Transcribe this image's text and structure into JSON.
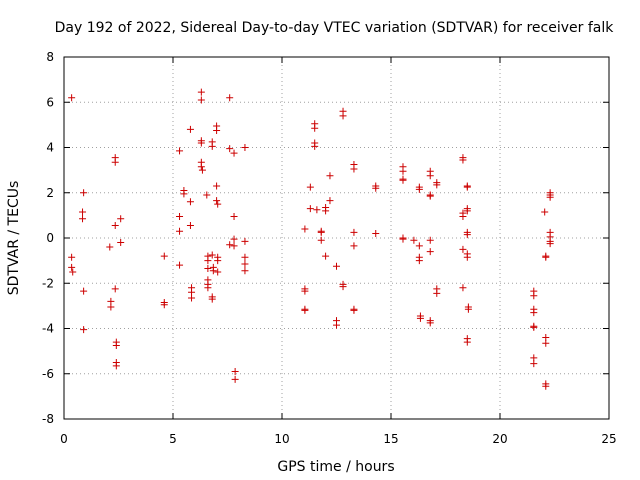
{
  "chart_data": {
    "type": "scatter",
    "title": "Day 192 of 2022, Sidereal Day-to-day VTEC variation (SDTVAR) for receiver falk",
    "xlabel": "GPS time / hours",
    "ylabel": "SDTVAR / TECUs",
    "xlim": [
      0,
      25
    ],
    "ylim": [
      -8,
      8
    ],
    "xticks": [
      0,
      5,
      10,
      15,
      20,
      25
    ],
    "yticks": [
      -8,
      -6,
      -4,
      -2,
      0,
      2,
      4,
      6,
      8
    ],
    "grid": true,
    "marker": "+",
    "color": "#cc0000",
    "points": [
      [
        0.35,
        6.2
      ],
      [
        0.35,
        -0.85
      ],
      [
        0.35,
        -1.3
      ],
      [
        0.4,
        -1.5
      ],
      [
        0.9,
        2.0
      ],
      [
        0.85,
        1.15
      ],
      [
        0.85,
        0.85
      ],
      [
        0.9,
        -2.35
      ],
      [
        0.9,
        -4.05
      ],
      [
        2.1,
        -0.4
      ],
      [
        2.15,
        -2.8
      ],
      [
        2.15,
        -3.05
      ],
      [
        2.35,
        3.55
      ],
      [
        2.35,
        3.35
      ],
      [
        2.35,
        0.55
      ],
      [
        2.35,
        -2.25
      ],
      [
        2.4,
        -4.6
      ],
      [
        2.4,
        -4.75
      ],
      [
        2.4,
        -5.5
      ],
      [
        2.4,
        -5.65
      ],
      [
        2.6,
        0.85
      ],
      [
        2.6,
        -0.2
      ],
      [
        4.6,
        -0.8
      ],
      [
        4.6,
        -2.85
      ],
      [
        4.6,
        -2.95
      ],
      [
        5.3,
        3.85
      ],
      [
        5.3,
        0.95
      ],
      [
        5.3,
        0.3
      ],
      [
        5.3,
        -1.2
      ],
      [
        5.5,
        2.1
      ],
      [
        5.5,
        1.95
      ],
      [
        5.8,
        4.8
      ],
      [
        5.8,
        1.6
      ],
      [
        5.8,
        0.55
      ],
      [
        5.85,
        -2.2
      ],
      [
        5.85,
        -2.4
      ],
      [
        5.85,
        -2.65
      ],
      [
        6.3,
        6.45
      ],
      [
        6.3,
        6.1
      ],
      [
        6.3,
        4.3
      ],
      [
        6.3,
        4.2
      ],
      [
        6.3,
        3.35
      ],
      [
        6.3,
        3.15
      ],
      [
        6.35,
        3.0
      ],
      [
        6.55,
        1.9
      ],
      [
        6.6,
        -0.8
      ],
      [
        6.6,
        -1.0
      ],
      [
        6.6,
        -1.35
      ],
      [
        6.6,
        -1.85
      ],
      [
        6.6,
        -2.05
      ],
      [
        6.6,
        -2.2
      ],
      [
        6.8,
        4.25
      ],
      [
        6.8,
        4.05
      ],
      [
        6.8,
        -0.75
      ],
      [
        6.85,
        -1.3
      ],
      [
        6.85,
        -1.45
      ],
      [
        6.8,
        -2.6
      ],
      [
        6.8,
        -2.7
      ],
      [
        7.0,
        4.95
      ],
      [
        7.0,
        4.75
      ],
      [
        7.0,
        2.3
      ],
      [
        7.0,
        1.65
      ],
      [
        7.05,
        1.5
      ],
      [
        7.05,
        -0.85
      ],
      [
        7.05,
        -1.0
      ],
      [
        7.05,
        -1.5
      ],
      [
        7.6,
        6.2
      ],
      [
        7.6,
        3.95
      ],
      [
        7.6,
        -0.3
      ],
      [
        7.8,
        3.75
      ],
      [
        7.8,
        0.95
      ],
      [
        7.8,
        -0.05
      ],
      [
        7.8,
        -0.35
      ],
      [
        7.85,
        -5.9
      ],
      [
        7.85,
        -6.25
      ],
      [
        8.3,
        4.0
      ],
      [
        8.3,
        -0.15
      ],
      [
        8.3,
        -0.85
      ],
      [
        8.3,
        -1.15
      ],
      [
        8.3,
        -1.45
      ],
      [
        11.05,
        0.4
      ],
      [
        11.05,
        -2.25
      ],
      [
        11.05,
        -2.35
      ],
      [
        11.05,
        -3.15
      ],
      [
        11.05,
        -3.2
      ],
      [
        11.3,
        2.25
      ],
      [
        11.3,
        1.3
      ],
      [
        11.5,
        5.05
      ],
      [
        11.5,
        4.85
      ],
      [
        11.5,
        4.2
      ],
      [
        11.5,
        4.05
      ],
      [
        11.6,
        1.25
      ],
      [
        11.8,
        0.3
      ],
      [
        11.8,
        0.25
      ],
      [
        11.8,
        -0.1
      ],
      [
        12.0,
        1.35
      ],
      [
        12.0,
        1.2
      ],
      [
        12.0,
        -0.8
      ],
      [
        12.2,
        2.75
      ],
      [
        12.2,
        1.65
      ],
      [
        12.5,
        -1.25
      ],
      [
        12.5,
        -3.65
      ],
      [
        12.5,
        -3.85
      ],
      [
        12.8,
        5.6
      ],
      [
        12.8,
        5.4
      ],
      [
        12.8,
        -2.05
      ],
      [
        12.8,
        -2.15
      ],
      [
        13.3,
        3.25
      ],
      [
        13.3,
        3.05
      ],
      [
        13.3,
        0.25
      ],
      [
        13.3,
        -0.35
      ],
      [
        13.3,
        -3.15
      ],
      [
        13.3,
        -3.2
      ],
      [
        14.3,
        2.3
      ],
      [
        14.3,
        2.2
      ],
      [
        14.3,
        0.2
      ],
      [
        15.55,
        3.15
      ],
      [
        15.55,
        2.95
      ],
      [
        15.55,
        2.6
      ],
      [
        15.55,
        2.55
      ],
      [
        15.55,
        0.0
      ],
      [
        15.55,
        -0.05
      ],
      [
        16.05,
        -0.1
      ],
      [
        16.3,
        2.25
      ],
      [
        16.3,
        2.15
      ],
      [
        16.3,
        -0.35
      ],
      [
        16.3,
        -0.85
      ],
      [
        16.3,
        -1.0
      ],
      [
        16.35,
        -3.45
      ],
      [
        16.35,
        -3.55
      ],
      [
        16.8,
        2.95
      ],
      [
        16.8,
        2.75
      ],
      [
        16.8,
        1.9
      ],
      [
        16.8,
        1.85
      ],
      [
        16.8,
        -0.1
      ],
      [
        16.8,
        -0.6
      ],
      [
        16.8,
        -3.65
      ],
      [
        16.8,
        -3.75
      ],
      [
        17.1,
        2.45
      ],
      [
        17.1,
        2.35
      ],
      [
        17.1,
        -2.25
      ],
      [
        17.1,
        -2.45
      ],
      [
        18.3,
        3.55
      ],
      [
        18.3,
        3.45
      ],
      [
        18.3,
        1.1
      ],
      [
        18.3,
        0.95
      ],
      [
        18.3,
        -0.5
      ],
      [
        18.3,
        -2.2
      ],
      [
        18.5,
        2.3
      ],
      [
        18.5,
        2.25
      ],
      [
        18.5,
        1.3
      ],
      [
        18.5,
        1.2
      ],
      [
        18.5,
        0.25
      ],
      [
        18.5,
        0.15
      ],
      [
        18.5,
        -0.7
      ],
      [
        18.5,
        -0.85
      ],
      [
        18.55,
        -3.05
      ],
      [
        18.55,
        -3.15
      ],
      [
        18.5,
        -4.45
      ],
      [
        18.5,
        -4.6
      ],
      [
        21.55,
        -2.35
      ],
      [
        21.55,
        -2.55
      ],
      [
        21.55,
        -3.15
      ],
      [
        21.55,
        -3.3
      ],
      [
        21.55,
        -3.9
      ],
      [
        21.55,
        -3.95
      ],
      [
        21.55,
        -5.3
      ],
      [
        21.55,
        -5.55
      ],
      [
        22.05,
        1.15
      ],
      [
        22.1,
        -0.8
      ],
      [
        22.1,
        -0.85
      ],
      [
        22.1,
        -4.4
      ],
      [
        22.1,
        -4.65
      ],
      [
        22.1,
        -6.45
      ],
      [
        22.1,
        -6.55
      ],
      [
        22.3,
        2.0
      ],
      [
        22.3,
        1.9
      ],
      [
        22.3,
        1.8
      ],
      [
        22.3,
        0.25
      ],
      [
        22.3,
        0.05
      ],
      [
        22.3,
        -0.15
      ],
      [
        22.3,
        -0.25
      ]
    ]
  }
}
